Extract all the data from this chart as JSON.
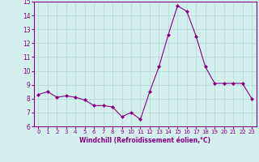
{
  "x": [
    0,
    1,
    2,
    3,
    4,
    5,
    6,
    7,
    8,
    9,
    10,
    11,
    12,
    13,
    14,
    15,
    16,
    17,
    18,
    19,
    20,
    21,
    22,
    23
  ],
  "y": [
    8.3,
    8.5,
    8.1,
    8.2,
    8.1,
    7.9,
    7.5,
    7.5,
    7.4,
    6.7,
    7.0,
    6.5,
    8.5,
    10.3,
    12.6,
    14.7,
    14.3,
    12.5,
    10.3,
    9.1,
    9.1,
    9.1,
    9.1,
    8.0
  ],
  "line_color": "#880088",
  "marker": "D",
  "marker_size": 2.0,
  "bg_color": "#d4f0ee",
  "grid_color": "#b8dbd8",
  "xlabel": "Windchill (Refroidissement éolien,°C)",
  "xlabel_color": "#880088",
  "tick_color": "#880088",
  "ylim": [
    6,
    15
  ],
  "xlim": [
    -0.5,
    23.5
  ],
  "yticks": [
    6,
    7,
    8,
    9,
    10,
    11,
    12,
    13,
    14,
    15
  ],
  "xticks": [
    0,
    1,
    2,
    3,
    4,
    5,
    6,
    7,
    8,
    9,
    10,
    11,
    12,
    13,
    14,
    15,
    16,
    17,
    18,
    19,
    20,
    21,
    22,
    23
  ]
}
